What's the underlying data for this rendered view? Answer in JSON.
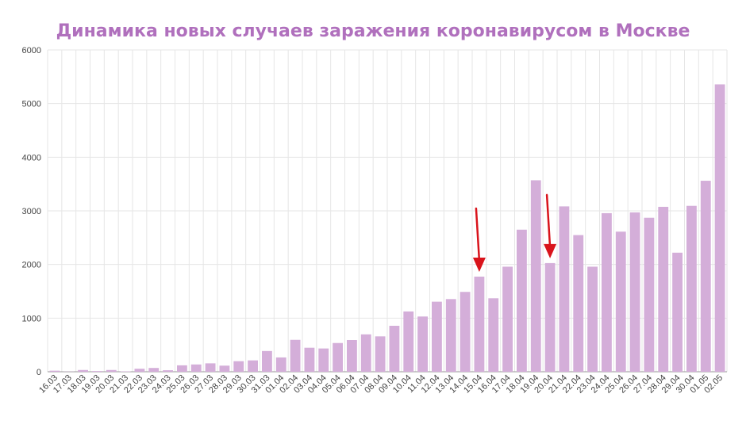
{
  "chart_data": {
    "type": "bar",
    "title": "Динамика новых случаев заражения коронавирусом в Москве",
    "xlabel": "",
    "ylabel": "",
    "ylim": [
      0,
      6000
    ],
    "yticks": [
      "0",
      "1000",
      "2000",
      "3000",
      "4000",
      "5000",
      "6000"
    ],
    "grid": true,
    "categories": [
      "16.03",
      "17.03",
      "18.03",
      "19.03",
      "20.03",
      "21.03",
      "22.03",
      "23.03",
      "24.03",
      "25.03",
      "26.03",
      "27.03",
      "28.03",
      "29.03",
      "30.03",
      "31.03",
      "01.04",
      "02.04",
      "03.04",
      "04.04",
      "05.04",
      "06.04",
      "07.04",
      "08.04",
      "09.04",
      "10.04",
      "11.04",
      "12.04",
      "13.04",
      "14.04",
      "15.04",
      "16.04",
      "17.04",
      "18.04",
      "19.04",
      "20.04",
      "21.04",
      "22.04",
      "23.04",
      "24.04",
      "25.04",
      "26.04",
      "27.04",
      "28.04",
      "29.04",
      "30.04",
      "01.05",
      "02.05"
    ],
    "values": [
      20,
      3,
      33,
      13,
      33,
      7,
      56,
      71,
      28,
      120,
      136,
      157,
      114,
      197,
      212,
      387,
      267,
      595,
      448,
      434,
      536,
      591,
      697,
      660,
      857,
      1124,
      1030,
      1306,
      1355,
      1489,
      1774,
      1370,
      1959,
      2649,
      3570,
      2026,
      3083,
      2548,
      1959,
      2957,
      2612,
      2971,
      2871,
      3075,
      2220,
      3093,
      3561,
      5358
    ],
    "annotations": [
      {
        "type": "arrow",
        "category": "15.04"
      },
      {
        "type": "arrow",
        "category": "20.04"
      }
    ],
    "colors": {
      "bar": "#d4aed9",
      "title": "#b070bd",
      "arrow": "#d9131b",
      "grid": "#e6e6e6"
    }
  }
}
